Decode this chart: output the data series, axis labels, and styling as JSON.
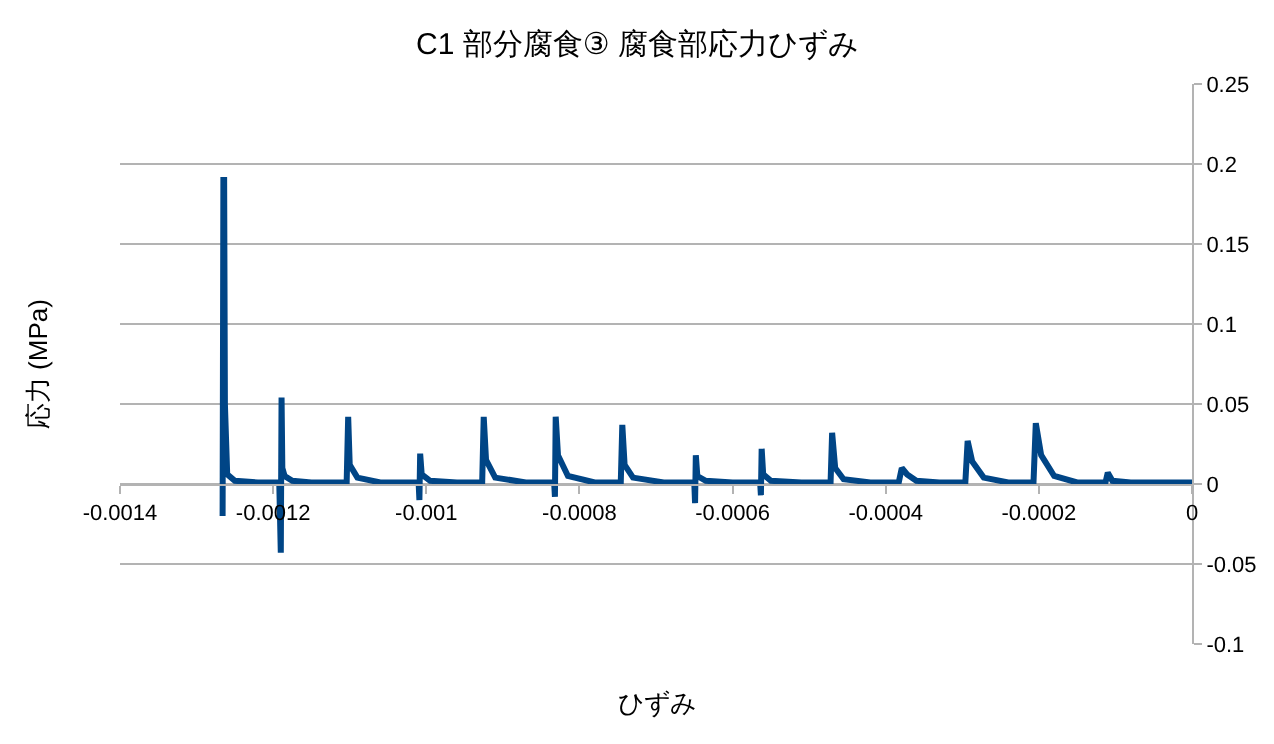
{
  "chart_data": {
    "type": "line",
    "title": "C1 部分腐食③ 腐食部応力ひずみ",
    "xlabel": "ひずみ",
    "ylabel": "応力 (MPa)",
    "x": [
      -0.001266,
      -0.001265,
      -0.001264,
      -0.001263,
      -0.00126,
      -0.00125,
      -0.00122,
      -0.001192,
      -0.00119,
      -0.001189,
      -0.001188,
      -0.001185,
      -0.001175,
      -0.00115,
      -0.001104,
      -0.001102,
      -0.0011,
      -0.00109,
      -0.00106,
      -0.00101,
      -0.001009,
      -0.001008,
      -0.001006,
      -0.000995,
      -0.00096,
      -0.000927,
      -0.000925,
      -0.000922,
      -0.00091,
      -0.00087,
      -0.000833,
      -0.000832,
      -0.000831,
      -0.000828,
      -0.000815,
      -0.00078,
      -0.000746,
      -0.000744,
      -0.000741,
      -0.00073,
      -0.00069,
      -0.00065,
      -0.000649,
      -0.000648,
      -0.000646,
      -0.000635,
      -0.0006,
      -0.000564,
      -0.000563,
      -0.000562,
      -0.00056,
      -0.00055,
      -0.00051,
      -0.000472,
      -0.00047,
      -0.000466,
      -0.000455,
      -0.00042,
      -0.000383,
      -0.000379,
      -0.000372,
      -0.00036,
      -0.00033,
      -0.000296,
      -0.000293,
      -0.000287,
      -0.000272,
      -0.00024,
      -0.000207,
      -0.000204,
      -0.000197,
      -0.00018,
      -0.00015,
      -0.000113,
      -0.00011,
      -0.000104,
      -8e-05,
      -4e-05,
      0
    ],
    "series": [
      {
        "color": "#004586",
        "values": [
          -0.02,
          0.19,
          0.19,
          0.05,
          0.006,
          0.002,
          0.001,
          0.001,
          -0.043,
          0.054,
          0.01,
          0.005,
          0.002,
          0.001,
          0.001,
          0.042,
          0.012,
          0.004,
          0.001,
          0.001,
          -0.01,
          0.019,
          0.006,
          0.002,
          0.001,
          0.001,
          0.042,
          0.015,
          0.004,
          0.001,
          0.001,
          -0.008,
          0.042,
          0.018,
          0.005,
          0.001,
          0.001,
          0.037,
          0.012,
          0.004,
          0.001,
          0.001,
          -0.012,
          0.018,
          0.005,
          0.002,
          0.001,
          0.001,
          -0.007,
          0.022,
          0.006,
          0.002,
          0.001,
          0.001,
          0.032,
          0.01,
          0.003,
          0.001,
          0.001,
          0.01,
          0.006,
          0.002,
          0.001,
          0.001,
          0.027,
          0.014,
          0.004,
          0.001,
          0.001,
          0.038,
          0.018,
          0.005,
          0.001,
          0.001,
          0.007,
          0.002,
          0.001,
          0.001,
          0.001
        ]
      }
    ],
    "xlim": [
      -0.0014,
      0
    ],
    "xticks": [
      -0.0014,
      -0.0012,
      -0.001,
      -0.0008,
      -0.0006,
      -0.0004,
      -0.0002,
      0
    ],
    "ylim": [
      -0.1,
      0.25
    ],
    "yticks": [
      -0.1,
      -0.05,
      0,
      0.05,
      0.1,
      0.15,
      0.2,
      0.25
    ],
    "grid": "y",
    "legend": false,
    "marker": "none",
    "line_style": "solid"
  }
}
